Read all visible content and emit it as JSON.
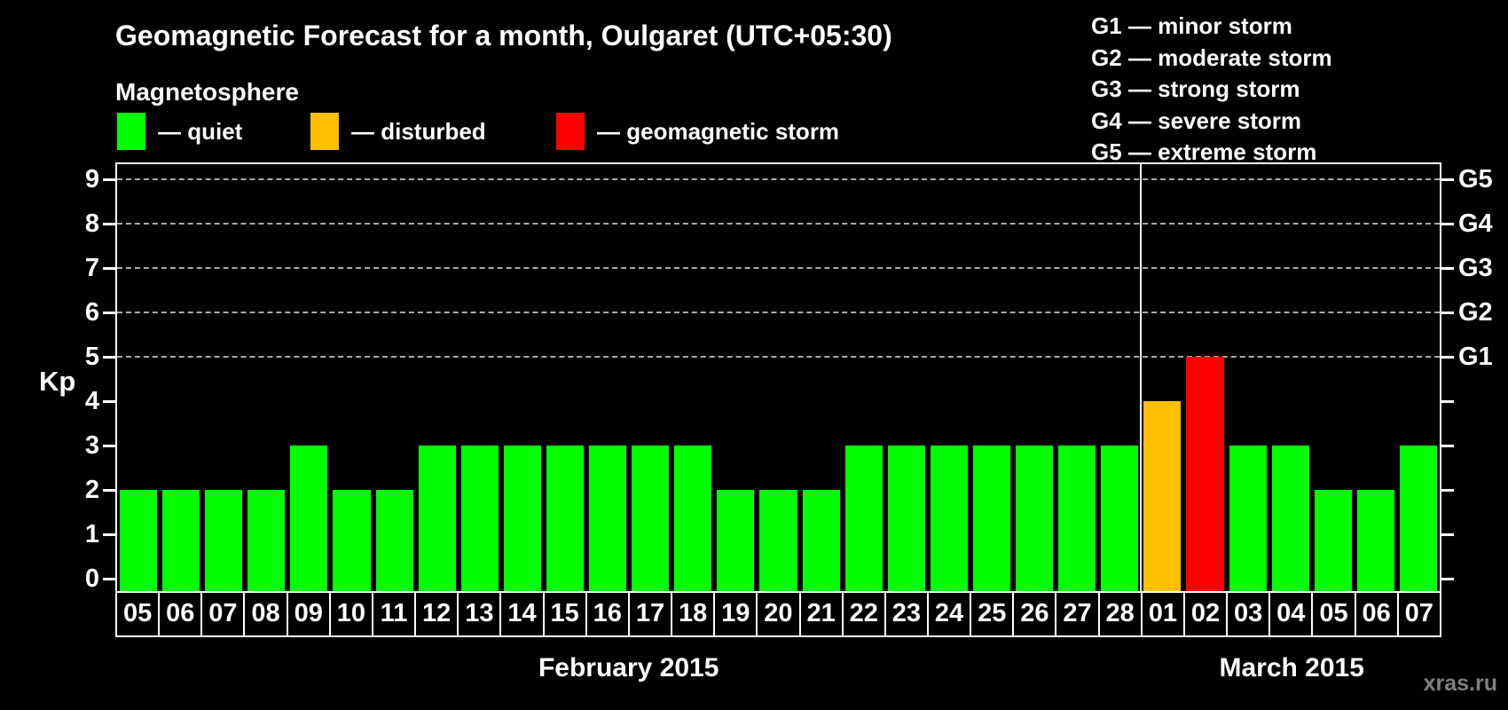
{
  "title": "Geomagnetic Forecast for a month, Oulgaret (UTC+05:30)",
  "legend": {
    "heading": "Magnetosphere",
    "items": [
      {
        "status": "quiet",
        "label": "— quiet",
        "color": "#00ff00"
      },
      {
        "status": "disturbed",
        "label": "— disturbed",
        "color": "#ffc000"
      },
      {
        "status": "storm",
        "label": "— geomagnetic storm",
        "color": "#ff0000"
      }
    ]
  },
  "storm_scale_legend": [
    "G1 — minor storm",
    "G2 — moderate storm",
    "G3 — strong storm",
    "G4 — severe storm",
    "G5 — extreme storm"
  ],
  "axes": {
    "y_label": "Kp",
    "y_ticks": [
      0,
      1,
      2,
      3,
      4,
      5,
      6,
      7,
      8,
      9
    ],
    "right_labels": [
      {
        "kp": 5,
        "label": "G1"
      },
      {
        "kp": 6,
        "label": "G2"
      },
      {
        "kp": 7,
        "label": "G3"
      },
      {
        "kp": 8,
        "label": "G4"
      },
      {
        "kp": 9,
        "label": "G5"
      }
    ]
  },
  "months": [
    {
      "label": "February 2015",
      "days": 24
    },
    {
      "label": "March 2015",
      "days": 7
    }
  ],
  "watermark": "xras.ru",
  "chart_data": {
    "type": "bar",
    "title": "Geomagnetic Forecast for a month, Oulgaret (UTC+05:30)",
    "xlabel": "",
    "ylabel": "Kp",
    "ylim": [
      0,
      9
    ],
    "grid": "horizontal dashed gridlines at Kp 5..9 only",
    "gridlines_kp": [
      5,
      6,
      7,
      8,
      9
    ],
    "legend_position": "top",
    "categories": [
      "05",
      "06",
      "07",
      "08",
      "09",
      "10",
      "11",
      "12",
      "13",
      "14",
      "15",
      "16",
      "17",
      "18",
      "19",
      "20",
      "21",
      "22",
      "23",
      "24",
      "25",
      "26",
      "27",
      "28",
      "01",
      "02",
      "03",
      "04",
      "05",
      "06",
      "07"
    ],
    "values": [
      2,
      2,
      2,
      2,
      3,
      2,
      2,
      3,
      3,
      3,
      3,
      3,
      3,
      3,
      2,
      2,
      2,
      3,
      3,
      3,
      3,
      3,
      3,
      3,
      4,
      5,
      3,
      3,
      2,
      2,
      3
    ],
    "statuses": [
      "quiet",
      "quiet",
      "quiet",
      "quiet",
      "quiet",
      "quiet",
      "quiet",
      "quiet",
      "quiet",
      "quiet",
      "quiet",
      "quiet",
      "quiet",
      "quiet",
      "quiet",
      "quiet",
      "quiet",
      "quiet",
      "quiet",
      "quiet",
      "quiet",
      "quiet",
      "quiet",
      "quiet",
      "disturbed",
      "storm",
      "quiet",
      "quiet",
      "quiet",
      "quiet",
      "quiet"
    ],
    "colors": {
      "quiet": "#00ff00",
      "disturbed": "#ffc000",
      "storm": "#ff0000"
    }
  }
}
